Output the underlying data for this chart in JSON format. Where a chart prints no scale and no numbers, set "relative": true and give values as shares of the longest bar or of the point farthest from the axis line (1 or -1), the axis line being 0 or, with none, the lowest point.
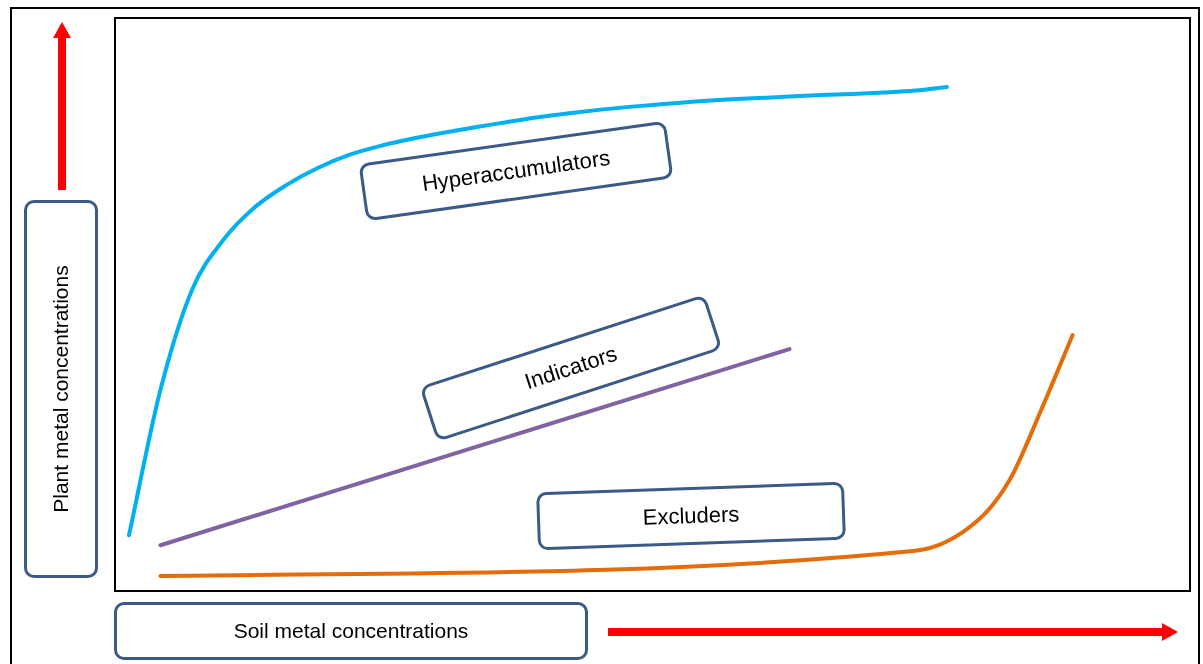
{
  "chart_data": {
    "type": "line",
    "relative": true,
    "xlabel": "Soil metal concentrations",
    "ylabel": "Plant metal concentrations",
    "categories": [
      null,
      null,
      null,
      null,
      null,
      null,
      null,
      null,
      null,
      null,
      null,
      null,
      null,
      null,
      null,
      null,
      null,
      null,
      null,
      null,
      null,
      null,
      null,
      null,
      null,
      null,
      null,
      null,
      null,
      null,
      null,
      null,
      null,
      null
    ],
    "series": [
      {
        "name": "Hyperaccumulators",
        "color": "#00b0f0",
        "values": [
          0.109,
          0.398,
          0.596,
          0.696,
          0.761,
          0.805,
          0.839,
          0.865,
          0.883,
          0.897,
          0.909,
          0.92,
          0.93,
          0.94,
          0.948,
          0.955,
          0.961,
          0.966,
          0.971,
          0.975,
          0.978,
          0.981,
          0.984,
          0.986,
          0.989,
          0.993,
          1,
          null,
          null,
          null,
          null,
          null,
          null,
          null
        ]
      },
      {
        "name": "Indicators",
        "color": "#8064a2",
        "values": [
          null,
          0.089,
          null,
          null,
          null,
          null,
          null,
          null,
          null,
          null,
          null,
          null,
          null,
          null,
          null,
          null,
          null,
          null,
          null,
          null,
          null,
          0.479,
          null,
          null,
          null,
          null,
          null,
          null,
          null,
          null,
          null,
          null,
          null,
          null
        ]
      },
      {
        "name": "Excluders",
        "color": "#e46c0a",
        "values": [
          null,
          0.028,
          null,
          null,
          null,
          null,
          null,
          null,
          null,
          null,
          null,
          null,
          null,
          null,
          null,
          null,
          null,
          null,
          null,
          null,
          null,
          null,
          null,
          null,
          null,
          0.078,
          null,
          0.139,
          0.219,
          0.358,
          0.507,
          null,
          null,
          null
        ]
      }
    ],
    "legend": false,
    "grid": false,
    "marker": "none",
    "tick_labels": false
  }
}
